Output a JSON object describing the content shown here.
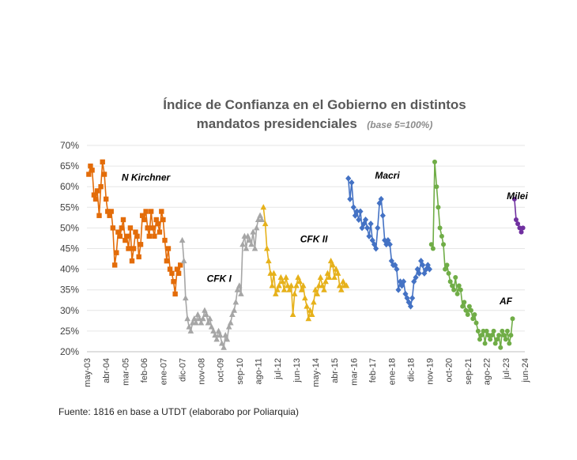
{
  "source": "Fuente: 1816 en base a UTDT (elaborabo por Poliarquia)",
  "chart_data": {
    "type": "line",
    "title_line1": "Índice de Confianza en el Gobierno en distintos",
    "title_line2": "mandatos presidenciales",
    "subtitle": "(base 5=100%)",
    "ylim": [
      0.2,
      0.7
    ],
    "yticks": [
      0.2,
      0.25,
      0.3,
      0.35,
      0.4,
      0.45,
      0.5,
      0.55,
      0.6,
      0.65,
      0.7
    ],
    "ytick_labels": [
      "20%",
      "25%",
      "30%",
      "35%",
      "40%",
      "45%",
      "50%",
      "55%",
      "60%",
      "65%",
      "70%"
    ],
    "xlim": [
      2003.33,
      2024.42
    ],
    "xticks": [
      2003.33,
      2004.25,
      2005.17,
      2006.08,
      2007.0,
      2007.92,
      2008.83,
      2009.75,
      2010.67,
      2011.58,
      2012.5,
      2013.42,
      2014.33,
      2015.25,
      2016.17,
      2017.08,
      2018.0,
      2018.92,
      2019.83,
      2020.75,
      2021.67,
      2022.58,
      2023.5,
      2024.42
    ],
    "xtick_labels": [
      "may-03",
      "abr-04",
      "mar-05",
      "feb-06",
      "ene-07",
      "dic-07",
      "nov-08",
      "oct-09",
      "sep-10",
      "ago-11",
      "jul-12",
      "jun-13",
      "may-14",
      "abr-15",
      "mar-16",
      "feb-17",
      "ene-18",
      "dic-18",
      "nov-19",
      "oct-20",
      "sep-21",
      "ago-22",
      "jul-23",
      "jun-24"
    ],
    "series": [
      {
        "name": "N Kirchner",
        "color": "#e36c09",
        "marker": "square",
        "label_x": 2005.0,
        "label_y": 0.615,
        "x": [
          2003.42,
          2003.5,
          2003.58,
          2003.67,
          2003.75,
          2003.83,
          2003.92,
          2004.0,
          2004.08,
          2004.17,
          2004.25,
          2004.33,
          2004.42,
          2004.5,
          2004.58,
          2004.67,
          2004.75,
          2004.83,
          2004.92,
          2005.0,
          2005.08,
          2005.17,
          2005.25,
          2005.33,
          2005.42,
          2005.5,
          2005.58,
          2005.67,
          2005.75,
          2005.83,
          2005.92,
          2006.0,
          2006.08,
          2006.17,
          2006.25,
          2006.33,
          2006.42,
          2006.5,
          2006.58,
          2006.67,
          2006.75,
          2006.83,
          2006.92,
          2007.0,
          2007.08,
          2007.17,
          2007.25,
          2007.33,
          2007.42,
          2007.5,
          2007.58,
          2007.67,
          2007.75,
          2007.83
        ],
        "y": [
          0.63,
          0.65,
          0.64,
          0.58,
          0.57,
          0.59,
          0.53,
          0.6,
          0.66,
          0.63,
          0.57,
          0.54,
          0.53,
          0.54,
          0.5,
          0.41,
          0.44,
          0.49,
          0.48,
          0.5,
          0.52,
          0.47,
          0.48,
          0.45,
          0.5,
          0.42,
          0.45,
          0.49,
          0.48,
          0.43,
          0.46,
          0.53,
          0.52,
          0.54,
          0.5,
          0.48,
          0.54,
          0.5,
          0.48,
          0.52,
          0.51,
          0.49,
          0.54,
          0.52,
          0.47,
          0.42,
          0.45,
          0.4,
          0.39,
          0.37,
          0.34,
          0.4,
          0.39,
          0.41
        ]
      },
      {
        "name": "CFK I",
        "color": "#a6a6a6",
        "marker": "triangle",
        "label_x": 2009.1,
        "label_y": 0.37,
        "x": [
          2007.92,
          2008.0,
          2008.08,
          2008.17,
          2008.25,
          2008.33,
          2008.42,
          2008.5,
          2008.58,
          2008.67,
          2008.75,
          2008.83,
          2008.92,
          2009.0,
          2009.08,
          2009.17,
          2009.25,
          2009.33,
          2009.42,
          2009.5,
          2009.58,
          2009.67,
          2009.75,
          2009.83,
          2009.92,
          2010.0,
          2010.08,
          2010.17,
          2010.25,
          2010.33,
          2010.42,
          2010.5,
          2010.58,
          2010.67,
          2010.75,
          2010.83,
          2010.92,
          2011.0,
          2011.08,
          2011.17,
          2011.25,
          2011.33,
          2011.42,
          2011.5,
          2011.58,
          2011.67,
          2011.75
        ],
        "y": [
          0.47,
          0.42,
          0.33,
          0.28,
          0.26,
          0.25,
          0.27,
          0.28,
          0.27,
          0.29,
          0.28,
          0.27,
          0.28,
          0.3,
          0.29,
          0.27,
          0.28,
          0.26,
          0.25,
          0.24,
          0.23,
          0.25,
          0.24,
          0.22,
          0.21,
          0.24,
          0.23,
          0.26,
          0.27,
          0.29,
          0.3,
          0.32,
          0.35,
          0.36,
          0.34,
          0.46,
          0.48,
          0.45,
          0.48,
          0.47,
          0.46,
          0.49,
          0.45,
          0.5,
          0.52,
          0.53,
          0.52
        ]
      },
      {
        "name": "CFK II",
        "color": "#e6b11a",
        "marker": "triangle",
        "label_x": 2013.6,
        "label_y": 0.465,
        "x": [
          2011.83,
          2011.92,
          2012.0,
          2012.08,
          2012.17,
          2012.25,
          2012.33,
          2012.42,
          2012.5,
          2012.58,
          2012.67,
          2012.75,
          2012.83,
          2012.92,
          2013.0,
          2013.08,
          2013.17,
          2013.25,
          2013.33,
          2013.42,
          2013.5,
          2013.58,
          2013.67,
          2013.75,
          2013.83,
          2013.92,
          2014.0,
          2014.08,
          2014.17,
          2014.25,
          2014.33,
          2014.42,
          2014.5,
          2014.58,
          2014.67,
          2014.75,
          2014.83,
          2014.92,
          2015.0,
          2015.08,
          2015.17,
          2015.25,
          2015.33,
          2015.42,
          2015.5,
          2015.58,
          2015.67,
          2015.75,
          2015.83
        ],
        "y": [
          0.55,
          0.51,
          0.45,
          0.42,
          0.39,
          0.36,
          0.39,
          0.34,
          0.35,
          0.36,
          0.38,
          0.37,
          0.35,
          0.38,
          0.36,
          0.35,
          0.36,
          0.29,
          0.34,
          0.36,
          0.38,
          0.37,
          0.35,
          0.36,
          0.33,
          0.31,
          0.28,
          0.3,
          0.29,
          0.32,
          0.35,
          0.34,
          0.36,
          0.38,
          0.36,
          0.35,
          0.37,
          0.39,
          0.38,
          0.42,
          0.41,
          0.38,
          0.4,
          0.39,
          0.36,
          0.35,
          0.37,
          0.36,
          0.36
        ]
      },
      {
        "name": "Macri",
        "color": "#4472c4",
        "marker": "diamond",
        "label_x": 2017.2,
        "label_y": 0.62,
        "x": [
          2015.92,
          2016.0,
          2016.08,
          2016.17,
          2016.25,
          2016.33,
          2016.42,
          2016.5,
          2016.58,
          2016.67,
          2016.75,
          2016.83,
          2016.92,
          2017.0,
          2017.08,
          2017.17,
          2017.25,
          2017.33,
          2017.42,
          2017.5,
          2017.58,
          2017.67,
          2017.75,
          2017.83,
          2017.92,
          2018.0,
          2018.08,
          2018.17,
          2018.25,
          2018.33,
          2018.42,
          2018.5,
          2018.58,
          2018.67,
          2018.75,
          2018.83,
          2018.92,
          2019.0,
          2019.08,
          2019.17,
          2019.25,
          2019.33,
          2019.42,
          2019.5,
          2019.58,
          2019.67,
          2019.75,
          2019.83
        ],
        "y": [
          0.62,
          0.57,
          0.61,
          0.55,
          0.53,
          0.54,
          0.52,
          0.54,
          0.5,
          0.51,
          0.52,
          0.5,
          0.48,
          0.51,
          0.47,
          0.46,
          0.45,
          0.5,
          0.56,
          0.57,
          0.53,
          0.47,
          0.46,
          0.47,
          0.46,
          0.42,
          0.41,
          0.41,
          0.4,
          0.35,
          0.37,
          0.36,
          0.37,
          0.34,
          0.33,
          0.32,
          0.31,
          0.33,
          0.37,
          0.38,
          0.4,
          0.39,
          0.42,
          0.41,
          0.39,
          0.4,
          0.41,
          0.4
        ]
      },
      {
        "name": "AF",
        "color": "#70ad47",
        "marker": "circle",
        "label_x": 2023.2,
        "label_y": 0.315,
        "x": [
          2019.92,
          2020.0,
          2020.08,
          2020.17,
          2020.25,
          2020.33,
          2020.42,
          2020.5,
          2020.58,
          2020.67,
          2020.75,
          2020.83,
          2020.92,
          2021.0,
          2021.08,
          2021.17,
          2021.25,
          2021.33,
          2021.42,
          2021.5,
          2021.58,
          2021.67,
          2021.75,
          2021.83,
          2021.92,
          2022.0,
          2022.08,
          2022.17,
          2022.25,
          2022.33,
          2022.42,
          2022.5,
          2022.58,
          2022.67,
          2022.75,
          2022.83,
          2022.92,
          2023.0,
          2023.08,
          2023.17,
          2023.25,
          2023.33,
          2023.42,
          2023.5,
          2023.58,
          2023.67,
          2023.75,
          2023.83
        ],
        "y": [
          0.46,
          0.45,
          0.66,
          0.6,
          0.55,
          0.5,
          0.48,
          0.46,
          0.4,
          0.41,
          0.39,
          0.37,
          0.36,
          0.35,
          0.38,
          0.34,
          0.36,
          0.35,
          0.31,
          0.32,
          0.3,
          0.29,
          0.31,
          0.3,
          0.28,
          0.29,
          0.27,
          0.25,
          0.23,
          0.24,
          0.25,
          0.22,
          0.25,
          0.24,
          0.23,
          0.24,
          0.25,
          0.22,
          0.23,
          0.24,
          0.21,
          0.25,
          0.24,
          0.23,
          0.25,
          0.22,
          0.24,
          0.28
        ]
      },
      {
        "name": "Milei",
        "color": "#7030a0",
        "marker": "circle",
        "label_x": 2023.55,
        "label_y": 0.57,
        "x": [
          2023.92,
          2024.0,
          2024.08,
          2024.17,
          2024.25,
          2024.33
        ],
        "y": [
          0.57,
          0.52,
          0.51,
          0.5,
          0.49,
          0.5
        ]
      }
    ]
  }
}
